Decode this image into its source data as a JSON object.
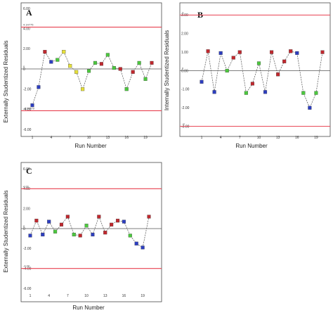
{
  "chart_data": [
    {
      "panel": "A",
      "type": "scatter",
      "ylabel": "Externally Studentized Residuals",
      "xlabel": "Run Number",
      "ylim": [
        -6,
        6
      ],
      "y_ticks": [
        "6.00",
        "4.00",
        "2.00",
        "0",
        "-2.00",
        "-4.00",
        "-6.00"
      ],
      "x_ticks": [
        1,
        4,
        7,
        10,
        13,
        16,
        19
      ],
      "upper_limit": 4.15,
      "upper_limit_label": "4.14775",
      "lower_limit": -4.15,
      "lower_limit_label": "-4.14779",
      "zero_label": "0",
      "grid": false,
      "connecting_line": "dashed",
      "x": [
        1,
        2,
        3,
        4,
        5,
        6,
        7,
        8,
        9,
        10,
        11,
        12,
        13,
        14,
        15,
        16,
        17,
        18,
        19,
        20
      ],
      "y": [
        -3.6,
        -1.8,
        1.7,
        0.7,
        0.9,
        1.7,
        0.3,
        -0.3,
        -2.0,
        -0.2,
        0.6,
        0.5,
        1.4,
        0.1,
        0.0,
        -2.0,
        -0.3,
        0.6,
        -1.0,
        0.6
      ],
      "colors": [
        "#2d3ec0",
        "#2d3ec0",
        "#c0282e",
        "#2d3ec0",
        "#4cc83e",
        "#e6e03a",
        "#e6e03a",
        "#e6e03a",
        "#e6e03a",
        "#4cc83e",
        "#4cc83e",
        "#c0282e",
        "#4cc83e",
        "#4cc83e",
        "#c0282e",
        "#4cc83e",
        "#c0282e",
        "#4cc83e",
        "#4cc83e",
        "#c0282e"
      ]
    },
    {
      "panel": "B",
      "type": "scatter",
      "ylabel": "Internally Studentized Residuals",
      "xlabel": "Run Number",
      "ylim": [
        -4,
        4
      ],
      "y_ticks": [
        "4.00",
        "3.00",
        "2.00",
        "1.00",
        "0.00",
        "-1.00",
        "-2.00",
        "-3.00"
      ],
      "x_ticks": [
        1,
        4,
        7,
        10,
        13,
        16,
        19
      ],
      "upper_limit": 3,
      "upper_limit_label": "3",
      "lower_limit": -3,
      "lower_limit_label": "-3",
      "zero_label": "0",
      "grid": false,
      "connecting_line": "dashed",
      "x": [
        1,
        2,
        3,
        4,
        5,
        6,
        7,
        8,
        9,
        10,
        11,
        12,
        13,
        14,
        15,
        16,
        17,
        18,
        19,
        20
      ],
      "y": [
        -0.6,
        1.05,
        -1.15,
        0.95,
        0.0,
        0.7,
        1.0,
        -1.2,
        -0.7,
        0.4,
        -1.15,
        1.0,
        -0.2,
        0.5,
        1.05,
        0.95,
        -1.2,
        -2.0,
        -1.2,
        1.0
      ],
      "colors": [
        "#2d3ec0",
        "#c0282e",
        "#2d3ec0",
        "#2d3ec0",
        "#4cc83e",
        "#c0282e",
        "#c0282e",
        "#4cc83e",
        "#c0282e",
        "#4cc83e",
        "#2d3ec0",
        "#c0282e",
        "#c0282e",
        "#c0282e",
        "#c0282e",
        "#2d3ec0",
        "#4cc83e",
        "#2d3ec0",
        "#4cc83e",
        "#c0282e"
      ]
    },
    {
      "panel": "C",
      "type": "scatter",
      "ylabel": "Externally Studentized Residuals",
      "xlabel": "Run Number",
      "ylim": [
        -6,
        6
      ],
      "y_ticks": [
        "6.00",
        "4.00",
        "2.00",
        "0",
        "-2.00",
        "-4.00",
        "-6.00"
      ],
      "x_ticks": [
        1,
        4,
        7,
        10,
        13,
        16,
        19
      ],
      "upper_limit": 4.0,
      "upper_limit_label": "4.00",
      "lower_limit": -4.0,
      "lower_limit_label": "-4.00",
      "zero_label": "0",
      "grid": false,
      "connecting_line": "dashed",
      "x": [
        1,
        2,
        3,
        4,
        5,
        6,
        7,
        8,
        9,
        10,
        11,
        12,
        13,
        14,
        15,
        16,
        17,
        18,
        19,
        20
      ],
      "y": [
        -0.7,
        0.8,
        -0.6,
        0.7,
        -0.3,
        0.4,
        1.2,
        -0.6,
        -0.7,
        0.3,
        -0.6,
        1.2,
        -0.4,
        0.4,
        0.8,
        0.7,
        -0.7,
        -1.5,
        -1.9,
        1.2
      ],
      "colors": [
        "#2d3ec0",
        "#c0282e",
        "#2d3ec0",
        "#2d3ec0",
        "#4cc83e",
        "#c0282e",
        "#c0282e",
        "#4cc83e",
        "#c0282e",
        "#4cc83e",
        "#2d3ec0",
        "#c0282e",
        "#c0282e",
        "#c0282e",
        "#c0282e",
        "#2d3ec0",
        "#4cc83e",
        "#2d3ec0",
        "#2d3ec0",
        "#c0282e"
      ]
    }
  ]
}
